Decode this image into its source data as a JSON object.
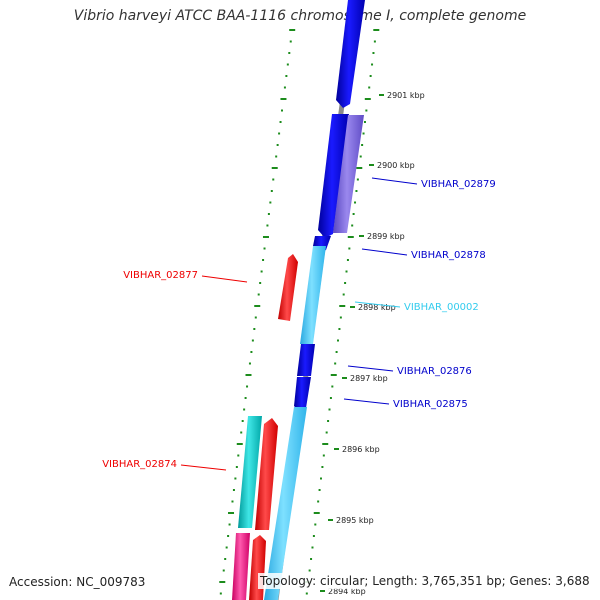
{
  "title": "Vibrio harveyi ATCC BAA-1116 chromosome I, complete genome",
  "accession": "Accession: NC_009783",
  "summary": "Topology: circular; Length: 3,765,351 bp; Genes: 3,688",
  "colors": {
    "backbone": "#808080",
    "forward_dark": "#0a0adf",
    "forward_light": "#45c8f5",
    "forward_purple": "#7b66d6",
    "reverse_red": "#ff0000",
    "reverse_teal": "#10c8c8",
    "reverse_magenta": "#ff1f8a",
    "tick_green": "#1c8c1c"
  },
  "kbp_ticks": [
    {
      "label": "2894 kbp"
    },
    {
      "label": "2895 kbp"
    },
    {
      "label": "2896 kbp"
    },
    {
      "label": "2897 kbp"
    },
    {
      "label": "2898 kbp"
    },
    {
      "label": "2899 kbp"
    },
    {
      "label": "2900 kbp"
    },
    {
      "label": "2901 kbp"
    }
  ],
  "gene_labels": [
    {
      "text": "VIBHAR_02879",
      "color": "#0000cc"
    },
    {
      "text": "VIBHAR_02878",
      "color": "#0000cc"
    },
    {
      "text": "VIBHAR_00002",
      "color": "#33ccee"
    },
    {
      "text": "VIBHAR_02877",
      "color": "#ee0000"
    },
    {
      "text": "VIBHAR_02876",
      "color": "#0000cc"
    },
    {
      "text": "VIBHAR_02875",
      "color": "#0000cc"
    },
    {
      "text": "VIBHAR_02874",
      "color": "#ee0000"
    }
  ]
}
